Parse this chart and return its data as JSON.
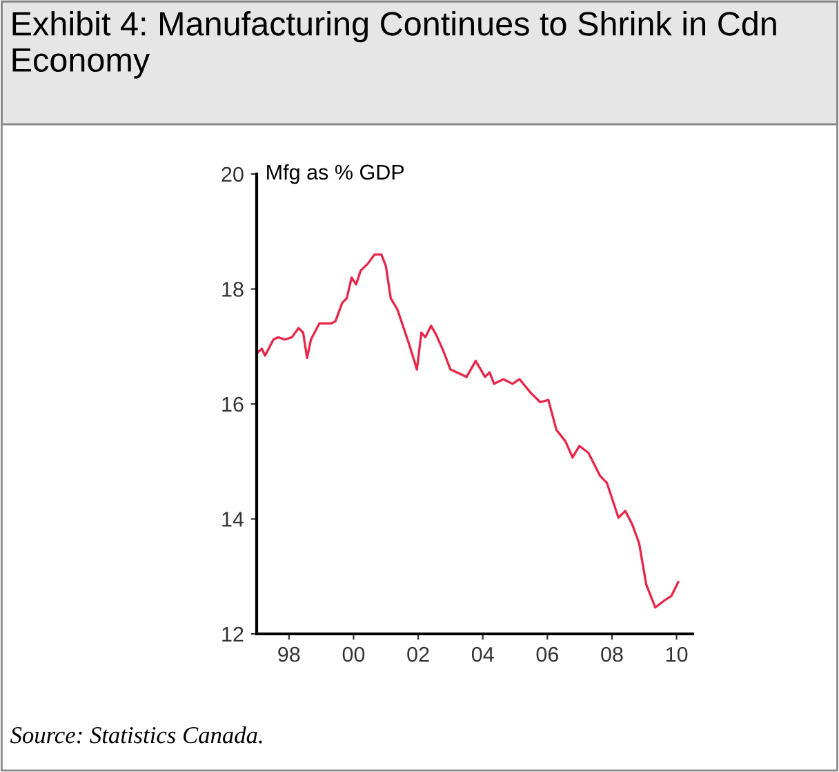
{
  "chart_data": {
    "type": "line",
    "title": "Exhibit 4: Manufacturing Continues to Shrink in Cdn Economy",
    "ylabel": "Mfg as % GDP",
    "annotations": [
      "Source: Statistics Canada."
    ],
    "x": [
      1997.04,
      1997.16,
      1997.26,
      1997.52,
      1997.66,
      1997.87,
      1998.09,
      1998.3,
      1998.44,
      1998.56,
      1998.68,
      1998.94,
      1999.3,
      1999.44,
      1999.65,
      1999.79,
      1999.94,
      2000.08,
      2000.22,
      2000.44,
      2000.65,
      2000.86,
      2001.0,
      2001.15,
      2001.36,
      2001.72,
      2001.96,
      2002.1,
      2002.22,
      2002.4,
      2002.56,
      2002.78,
      2003.0,
      2003.5,
      2003.78,
      2004.07,
      2004.21,
      2004.35,
      2004.64,
      2004.92,
      2005.14,
      2005.49,
      2005.78,
      2006.03,
      2006.28,
      2006.56,
      2006.78,
      2006.99,
      2007.27,
      2007.63,
      2007.84,
      2008.2,
      2008.41,
      2008.63,
      2008.84,
      2009.06,
      2009.34,
      2009.62,
      2009.84,
      2010.05
    ],
    "series": [
      {
        "color": "#e8264a",
        "values": [
          16.9,
          16.96,
          16.84,
          17.12,
          17.16,
          17.12,
          17.16,
          17.32,
          17.24,
          16.8,
          17.12,
          17.4,
          17.4,
          17.44,
          17.76,
          17.84,
          18.2,
          18.08,
          18.32,
          18.44,
          18.6,
          18.6,
          18.4,
          17.84,
          17.64,
          17.04,
          16.6,
          17.24,
          17.16,
          17.36,
          17.2,
          16.92,
          16.6,
          16.47,
          16.75,
          16.47,
          16.55,
          16.35,
          16.43,
          16.35,
          16.43,
          16.19,
          16.03,
          16.07,
          15.55,
          15.35,
          15.07,
          15.27,
          15.15,
          14.75,
          14.63,
          14.02,
          14.14,
          13.9,
          13.58,
          12.86,
          12.46,
          12.58,
          12.66,
          12.9
        ]
      }
    ],
    "xlim": [
      1997,
      2010.5
    ],
    "xticks": [
      {
        "value": 1998,
        "label": "98"
      },
      {
        "value": 2000,
        "label": "00"
      },
      {
        "value": 2002,
        "label": "02"
      },
      {
        "value": 2004,
        "label": "04"
      },
      {
        "value": 2006,
        "label": "06"
      },
      {
        "value": 2008,
        "label": "08"
      },
      {
        "value": 2010,
        "label": "10"
      }
    ],
    "ylim": [
      12,
      20
    ],
    "yticks": [
      12,
      14,
      16,
      18,
      20
    ],
    "grid": false,
    "legend": false,
    "marker": "none",
    "line_style": "solid"
  }
}
